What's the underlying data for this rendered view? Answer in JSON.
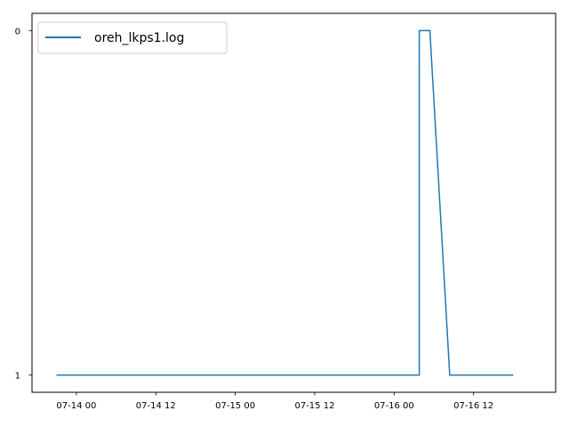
{
  "chart_data": {
    "type": "line",
    "title": "",
    "xlabel": "",
    "ylabel": "",
    "x_axis_kind": "datetime",
    "x_ticks": [
      {
        "value": "2023-07-14T00:00",
        "label": "07-14 00"
      },
      {
        "value": "2023-07-14T12:00",
        "label": "07-14 12"
      },
      {
        "value": "2023-07-15T00:00",
        "label": "07-15 00"
      },
      {
        "value": "2023-07-15T12:00",
        "label": "07-15 12"
      },
      {
        "value": "2023-07-16T00:00",
        "label": "07-16 00"
      },
      {
        "value": "2023-07-16T12:00",
        "label": "07-16 12"
      }
    ],
    "y_ticks": [
      {
        "value": 0,
        "label": "0"
      },
      {
        "value": 1,
        "label": "1"
      }
    ],
    "xlim": [
      "2023-07-13T17:18",
      "2023-07-17T00:24"
    ],
    "ylim": [
      1.05,
      -0.05
    ],
    "y_inverted": true,
    "grid": false,
    "legend_position": "top-left",
    "series": [
      {
        "name": "oreh_lkps1.log",
        "color": "#1f77b4",
        "x": [
          "2023-07-13T21:00",
          "2023-07-16T03:48",
          "2023-07-16T03:48",
          "2023-07-16T05:24",
          "2023-07-16T08:24",
          "2023-07-16T18:00"
        ],
        "y": [
          1,
          1,
          0,
          0,
          1,
          1
        ]
      }
    ]
  }
}
